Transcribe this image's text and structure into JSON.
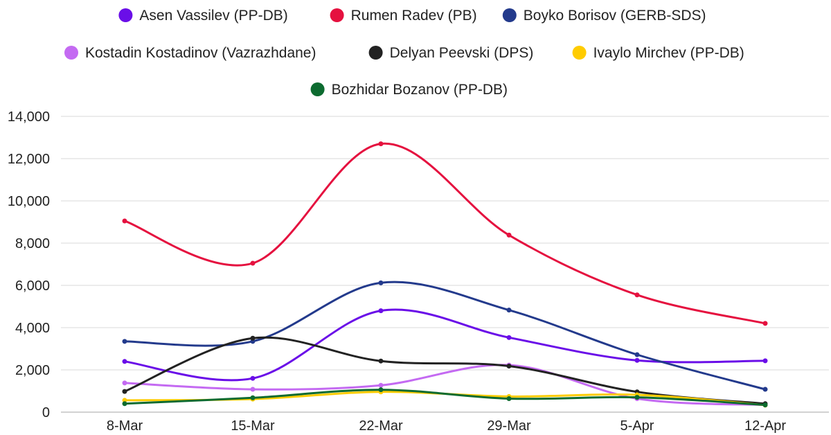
{
  "chart_data": {
    "type": "line",
    "categories": [
      "8-Mar",
      "15-Mar",
      "22-Mar",
      "29-Mar",
      "5-Apr",
      "12-Apr"
    ],
    "ylim": [
      0,
      14000
    ],
    "yticks": [
      0,
      2000,
      4000,
      6000,
      8000,
      10000,
      12000,
      14000
    ],
    "ytick_labels": [
      "0",
      "2,000",
      "4,000",
      "6,000",
      "8,000",
      "10,000",
      "12,000",
      "14,000"
    ],
    "grid": true,
    "legend_position": "top",
    "smooth": true,
    "series": [
      {
        "name": "Asen Vassilev (PP-DB)",
        "color": "#6a0ee8",
        "values": [
          2400,
          1600,
          4800,
          3530,
          2450,
          2430
        ]
      },
      {
        "name": "Rumen Radev (PB)",
        "color": "#e5113f",
        "values": [
          9050,
          7050,
          12700,
          8380,
          5550,
          4200
        ]
      },
      {
        "name": "Boyko Borisov (GERB-SDS)",
        "color": "#233a8c",
        "values": [
          3350,
          3350,
          6120,
          4830,
          2720,
          1080
        ]
      },
      {
        "name": "Kostadin Kostadinov (Vazrazhdane)",
        "color": "#c46af2",
        "values": [
          1380,
          1080,
          1270,
          2230,
          640,
          340
        ]
      },
      {
        "name": "Delyan Peevski (DPS)",
        "color": "#222222",
        "values": [
          980,
          3500,
          2420,
          2180,
          960,
          400
        ]
      },
      {
        "name": "Ivaylo Mirchev (PP-DB)",
        "color": "#ffcc00",
        "values": [
          560,
          620,
          960,
          740,
          820,
          330
        ]
      },
      {
        "name": "Bozhidar Bozanov (PP-DB)",
        "color": "#0d6b30",
        "values": [
          400,
          680,
          1060,
          640,
          700,
          340
        ]
      }
    ]
  }
}
